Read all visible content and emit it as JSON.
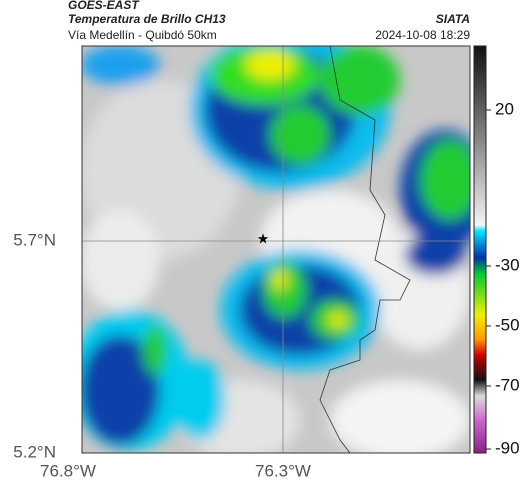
{
  "header": {
    "product": "GOES-EAST",
    "title": "Temperatura de Brillo CH13",
    "subtitle": "Vía Medellín - Quibdó 50km",
    "source": "SIATA",
    "datetime": "2024-10-08 18:29"
  },
  "map": {
    "lat_labels": [
      "5.7°N",
      "5.2°N"
    ],
    "lon_labels": [
      "76.8°W",
      "76.3°W"
    ]
  },
  "colorbar": {
    "ticks": [
      20,
      -30,
      -50,
      -70,
      -90
    ]
  }
}
